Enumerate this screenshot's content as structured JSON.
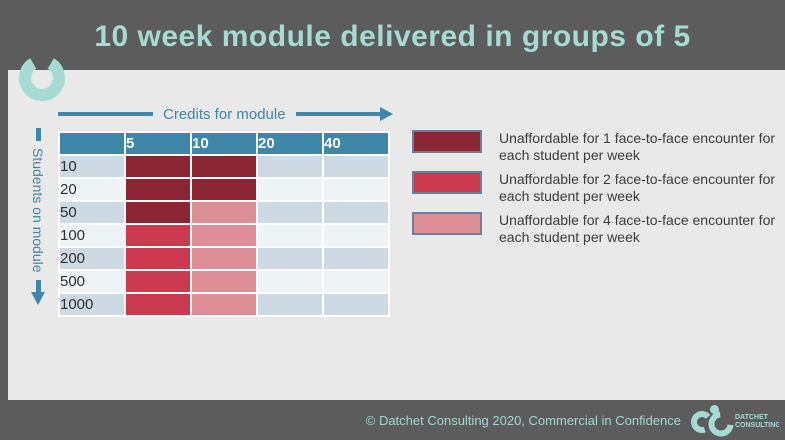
{
  "slide": {
    "title": "10 week module delivered in groups of 5",
    "footer": {
      "copyright": "© Datchet Consulting 2020, Commercial in Confidence",
      "logo_line1": "DATCHET",
      "logo_line2": "CONSULTING"
    }
  },
  "axes": {
    "x_label": "Credits for module",
    "y_label": "Students on module"
  },
  "table": {
    "corner_header": "",
    "col_headers": [
      "5",
      "10",
      "20",
      "40"
    ],
    "rows": [
      {
        "label": "10",
        "cells": [
          "1",
          "1",
          null,
          null
        ]
      },
      {
        "label": "20",
        "cells": [
          "1",
          "1",
          null,
          null
        ]
      },
      {
        "label": "50",
        "cells": [
          "1",
          "4",
          null,
          null
        ]
      },
      {
        "label": "100",
        "cells": [
          "2",
          "4",
          null,
          null
        ]
      },
      {
        "label": "200",
        "cells": [
          "2",
          "4",
          null,
          null
        ]
      },
      {
        "label": "500",
        "cells": [
          "2",
          "4",
          null,
          null
        ]
      },
      {
        "label": "1000",
        "cells": [
          "2",
          "4",
          null,
          null
        ]
      }
    ]
  },
  "legend": [
    {
      "key": "1",
      "color": "#8c2634",
      "label": "Unaffordable for 1 face-to-face encounter for each student per week"
    },
    {
      "key": "2",
      "color": "#cb3a4e",
      "label": "Unaffordable for 2 face-to-face encounter for each student per week"
    },
    {
      "key": "4",
      "color": "#de8e97",
      "label": "Unaffordable for 4 face-to-face encounter for each student per week"
    }
  ],
  "colors": {
    "background": "#5c5c5c",
    "panel": "#e9e9e9",
    "mint_accent": "#a5dbd2",
    "blue_accent": "#3e87a9",
    "dark_red": "#8c2634",
    "red": "#cb3a4e",
    "pink": "#de8e97",
    "row_odd": "#cdd9e3",
    "row_even": "#eef4f6",
    "swatch_border": "#64829a"
  },
  "chart_data": {
    "type": "heatmap",
    "title": "10 week module delivered in groups of 5",
    "xlabel": "Credits for module",
    "ylabel": "Students on module",
    "x_categories": [
      5,
      10,
      20,
      40
    ],
    "y_categories": [
      10,
      20,
      50,
      100,
      200,
      500,
      1000
    ],
    "values": [
      [
        "unaffordable_for_1",
        "unaffordable_for_1",
        null,
        null
      ],
      [
        "unaffordable_for_1",
        "unaffordable_for_1",
        null,
        null
      ],
      [
        "unaffordable_for_1",
        "unaffordable_for_4",
        null,
        null
      ],
      [
        "unaffordable_for_2",
        "unaffordable_for_4",
        null,
        null
      ],
      [
        "unaffordable_for_2",
        "unaffordable_for_4",
        null,
        null
      ],
      [
        "unaffordable_for_2",
        "unaffordable_for_4",
        null,
        null
      ],
      [
        "unaffordable_for_2",
        "unaffordable_for_4",
        null,
        null
      ]
    ],
    "legend_position": "right",
    "legend_entries": [
      "Unaffordable for 1 face-to-face encounter for each student per week",
      "Unaffordable for 2 face-to-face encounter for each student per week",
      "Unaffordable for 4 face-to-face encounter for each student per week"
    ],
    "grid": false
  }
}
